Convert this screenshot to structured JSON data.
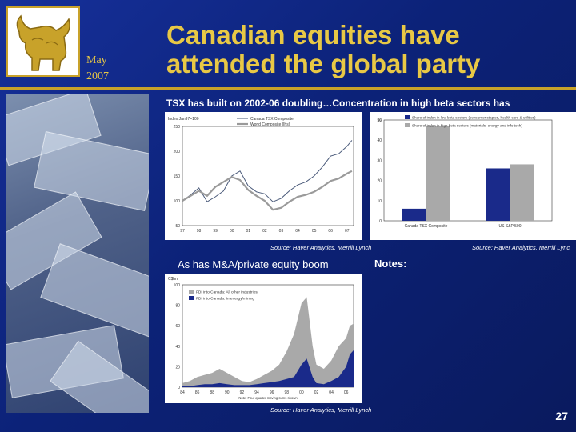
{
  "header": {
    "date_month": "May",
    "date_year": "2007",
    "title_line1": "Canadian equities have",
    "title_line2": "attended the global party"
  },
  "subtitles": {
    "top": "TSX has built on 2002-06 doubling…Concentration in high beta sectors has",
    "bottom_left": "As has M&A/private equity boom",
    "notes": "Notes:"
  },
  "sources": {
    "left": "Source: Haver Analytics, Merrill Lynch",
    "right": "Source: Haver Analytics, Merrill Lync",
    "bottom": "Source: Haver Analytics, Merrill Lynch"
  },
  "page_number": "27",
  "colors": {
    "gold": "#e8c845",
    "navy": "#1a2a8a",
    "grey": "#9a9a9a"
  },
  "chart_data": [
    {
      "type": "line",
      "title": "",
      "ylabel": "Index Jan97=100",
      "x_ticks": [
        "97",
        "98",
        "99",
        "00",
        "01",
        "02",
        "03",
        "04",
        "05",
        "06",
        "07"
      ],
      "y_ticks": [
        50,
        100,
        150,
        200,
        250
      ],
      "ylim": [
        50,
        250
      ],
      "legend": [
        "Canada TSX Composite",
        "World Composite (lhs)"
      ],
      "series": [
        {
          "name": "Canada TSX Composite",
          "x": [
            1997,
            1997.5,
            1998,
            1998.5,
            1999,
            1999.5,
            2000,
            2000.5,
            2001,
            2001.5,
            2002,
            2002.5,
            2003,
            2003.5,
            2004,
            2004.5,
            2005,
            2005.5,
            2006,
            2006.5,
            2007,
            2007.3
          ],
          "y": [
            100,
            112,
            126,
            98,
            108,
            120,
            150,
            160,
            130,
            118,
            114,
            98,
            105,
            120,
            132,
            138,
            150,
            168,
            190,
            195,
            210,
            222
          ]
        },
        {
          "name": "World Composite (lhs)",
          "x": [
            1997,
            1997.5,
            1998,
            1998.5,
            1999,
            1999.5,
            2000,
            2000.5,
            2001,
            2001.5,
            2002,
            2002.5,
            2003,
            2003.5,
            2004,
            2004.5,
            2005,
            2005.5,
            2006,
            2006.5,
            2007,
            2007.3
          ],
          "y": [
            100,
            110,
            120,
            110,
            128,
            138,
            148,
            142,
            122,
            110,
            100,
            82,
            86,
            98,
            108,
            112,
            118,
            128,
            140,
            145,
            155,
            160
          ]
        }
      ]
    },
    {
      "type": "bar",
      "ylabel": "%",
      "categories": [
        "Canada TSX Composite",
        "US S&P 500"
      ],
      "legend": [
        "Share of index in low-beta sectors (consumer staples, health care & utilities)",
        "Share of index in high beta sectors (materials, energy and info tech)"
      ],
      "y_ticks": [
        0,
        10,
        20,
        30,
        40,
        50
      ],
      "ylim": [
        0,
        50
      ],
      "series": [
        {
          "name": "Share of index in low-beta sectors (consumer staples, health care & utilities)",
          "values": [
            6,
            26
          ]
        },
        {
          "name": "Share of index in high beta sectors (materials, energy and info tech)",
          "values": [
            47,
            28
          ]
        }
      ]
    },
    {
      "type": "area",
      "ylabel": "C$bn",
      "legend": [
        "FDI into Canada: All other industries",
        "FDI into Canada: In energy/mining"
      ],
      "x_ticks": [
        "84",
        "86",
        "88",
        "90",
        "92",
        "94",
        "96",
        "98",
        "00",
        "02",
        "04",
        "06"
      ],
      "y_ticks": [
        0,
        20,
        40,
        60,
        80,
        100
      ],
      "ylim": [
        0,
        100
      ],
      "xlabel_note": "Note: Four quarter moving sums shown",
      "series": [
        {
          "name": "FDI into Canada: All other industries",
          "x": [
            1984,
            1985,
            1986,
            1987,
            1988,
            1989,
            1990,
            1991,
            1992,
            1993,
            1994,
            1995,
            1996,
            1997,
            1998,
            1999,
            2000,
            2000.7,
            2001.5,
            2002,
            2003,
            2004,
            2005,
            2006,
            2006.5,
            2007
          ],
          "y": [
            4,
            6,
            10,
            12,
            14,
            18,
            14,
            10,
            6,
            5,
            8,
            12,
            16,
            22,
            35,
            52,
            82,
            88,
            40,
            22,
            18,
            26,
            40,
            48,
            60,
            62
          ]
        },
        {
          "name": "FDI into Canada: In energy/mining",
          "x": [
            1984,
            1985,
            1986,
            1987,
            1988,
            1989,
            1990,
            1991,
            1992,
            1993,
            1994,
            1995,
            1996,
            1997,
            1998,
            1999,
            2000,
            2000.7,
            2001.5,
            2002,
            2003,
            2004,
            2005,
            2006,
            2006.5,
            2007
          ],
          "y": [
            1,
            1,
            2,
            3,
            3,
            4,
            3,
            2,
            2,
            2,
            3,
            4,
            5,
            6,
            8,
            10,
            22,
            28,
            10,
            4,
            3,
            6,
            10,
            20,
            32,
            36
          ]
        }
      ]
    }
  ]
}
